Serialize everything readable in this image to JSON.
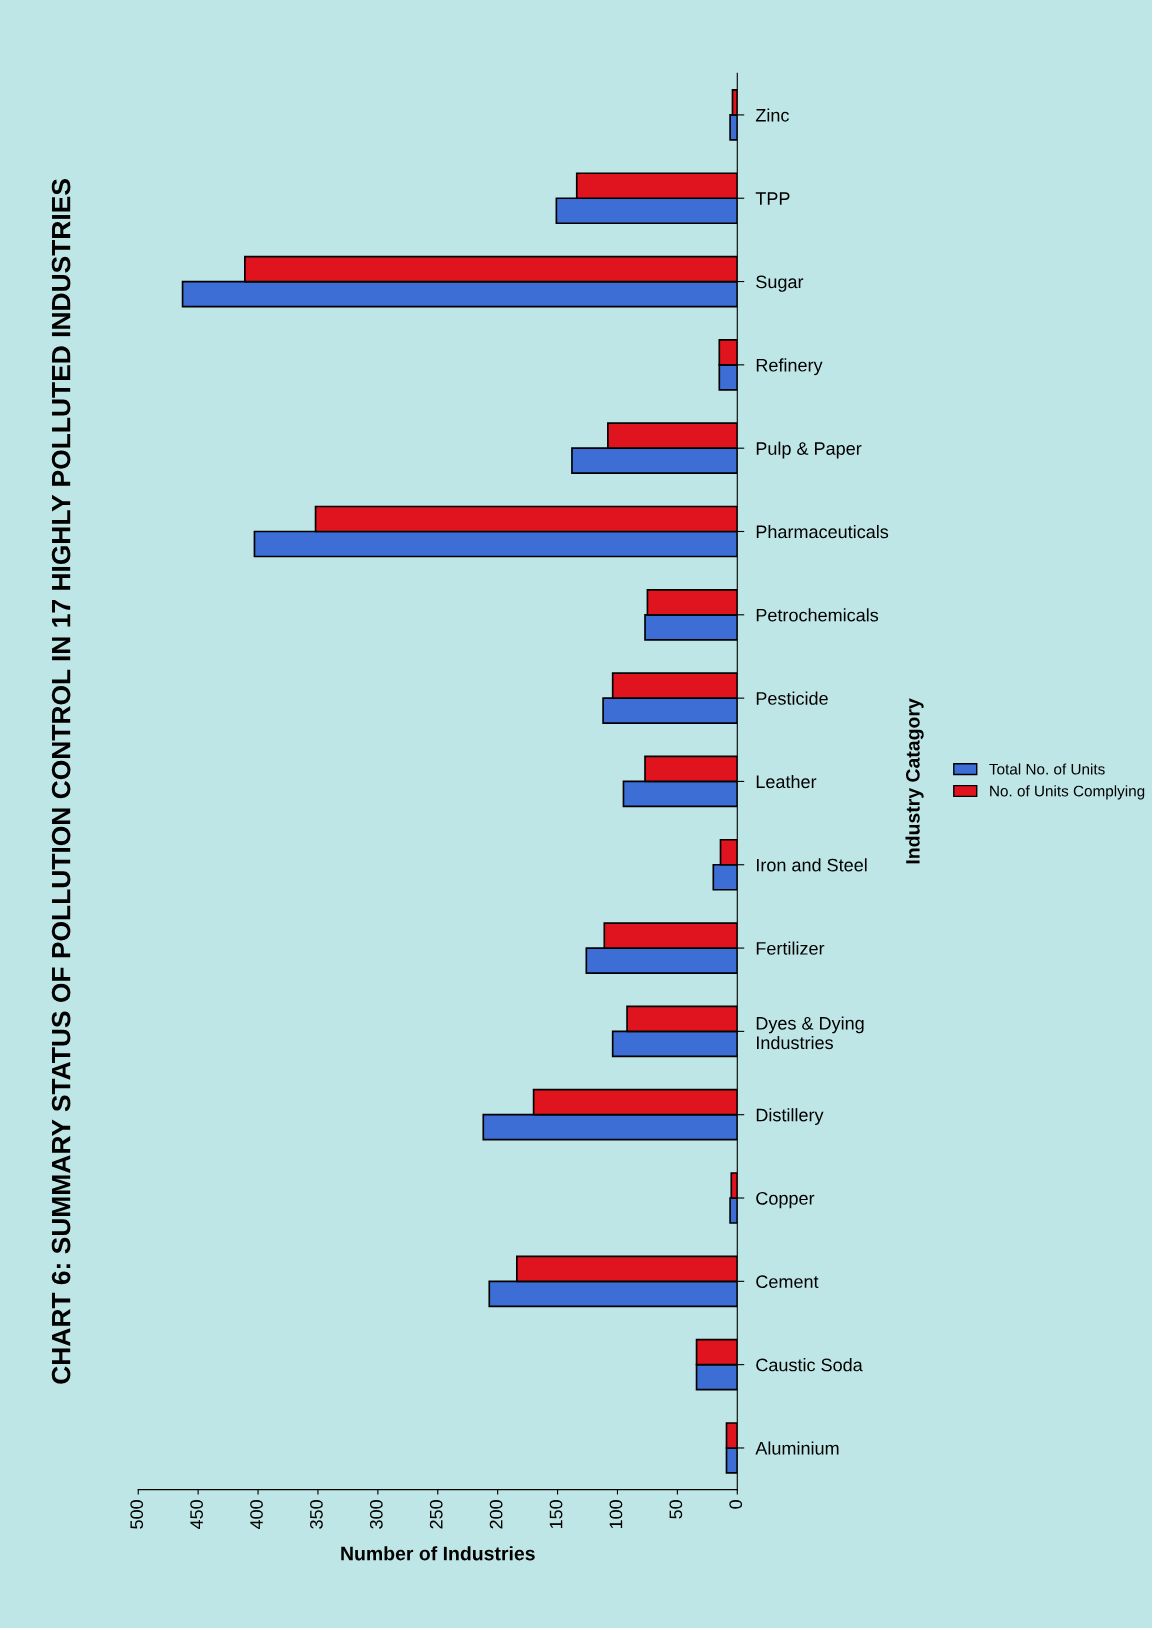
{
  "chart_data": {
    "type": "bar",
    "orientation": "horizontal",
    "title": "CHART 6: SUMMARY STATUS OF POLLUTION CONTROL IN 17 HIGHLY POLLUTED INDUSTRIES",
    "xlabel": "Number of Industries",
    "ylabel": "Industry Catagory",
    "categories": [
      "Zinc",
      "TPP",
      "Sugar",
      "Refinery",
      "Pulp & Paper",
      "Pharmaceuticals",
      "Petrochemicals",
      "Pesticide",
      "Leather",
      "Iron and Steel",
      "Fertilizer",
      "Dyes & Dying\nIndustries",
      "Distillery",
      "Copper",
      "Cement",
      "Caustic Soda",
      "Aluminium"
    ],
    "series": [
      {
        "name": "Total No. of Units",
        "color": "#3d6ed6",
        "values": [
          6,
          151,
          463,
          15,
          138,
          403,
          77,
          112,
          95,
          20,
          126,
          104,
          212,
          6,
          207,
          34,
          9
        ]
      },
      {
        "name": "No. of Units Complying",
        "color": "#e0141e",
        "values": [
          4,
          134,
          411,
          15,
          108,
          352,
          75,
          104,
          77,
          14,
          111,
          92,
          170,
          5,
          184,
          34,
          9
        ]
      }
    ],
    "xlim": [
      500,
      0
    ],
    "xticks": [
      500,
      450,
      400,
      350,
      300,
      250,
      200,
      150,
      100,
      50,
      0
    ],
    "grid": false,
    "legend": "right"
  }
}
